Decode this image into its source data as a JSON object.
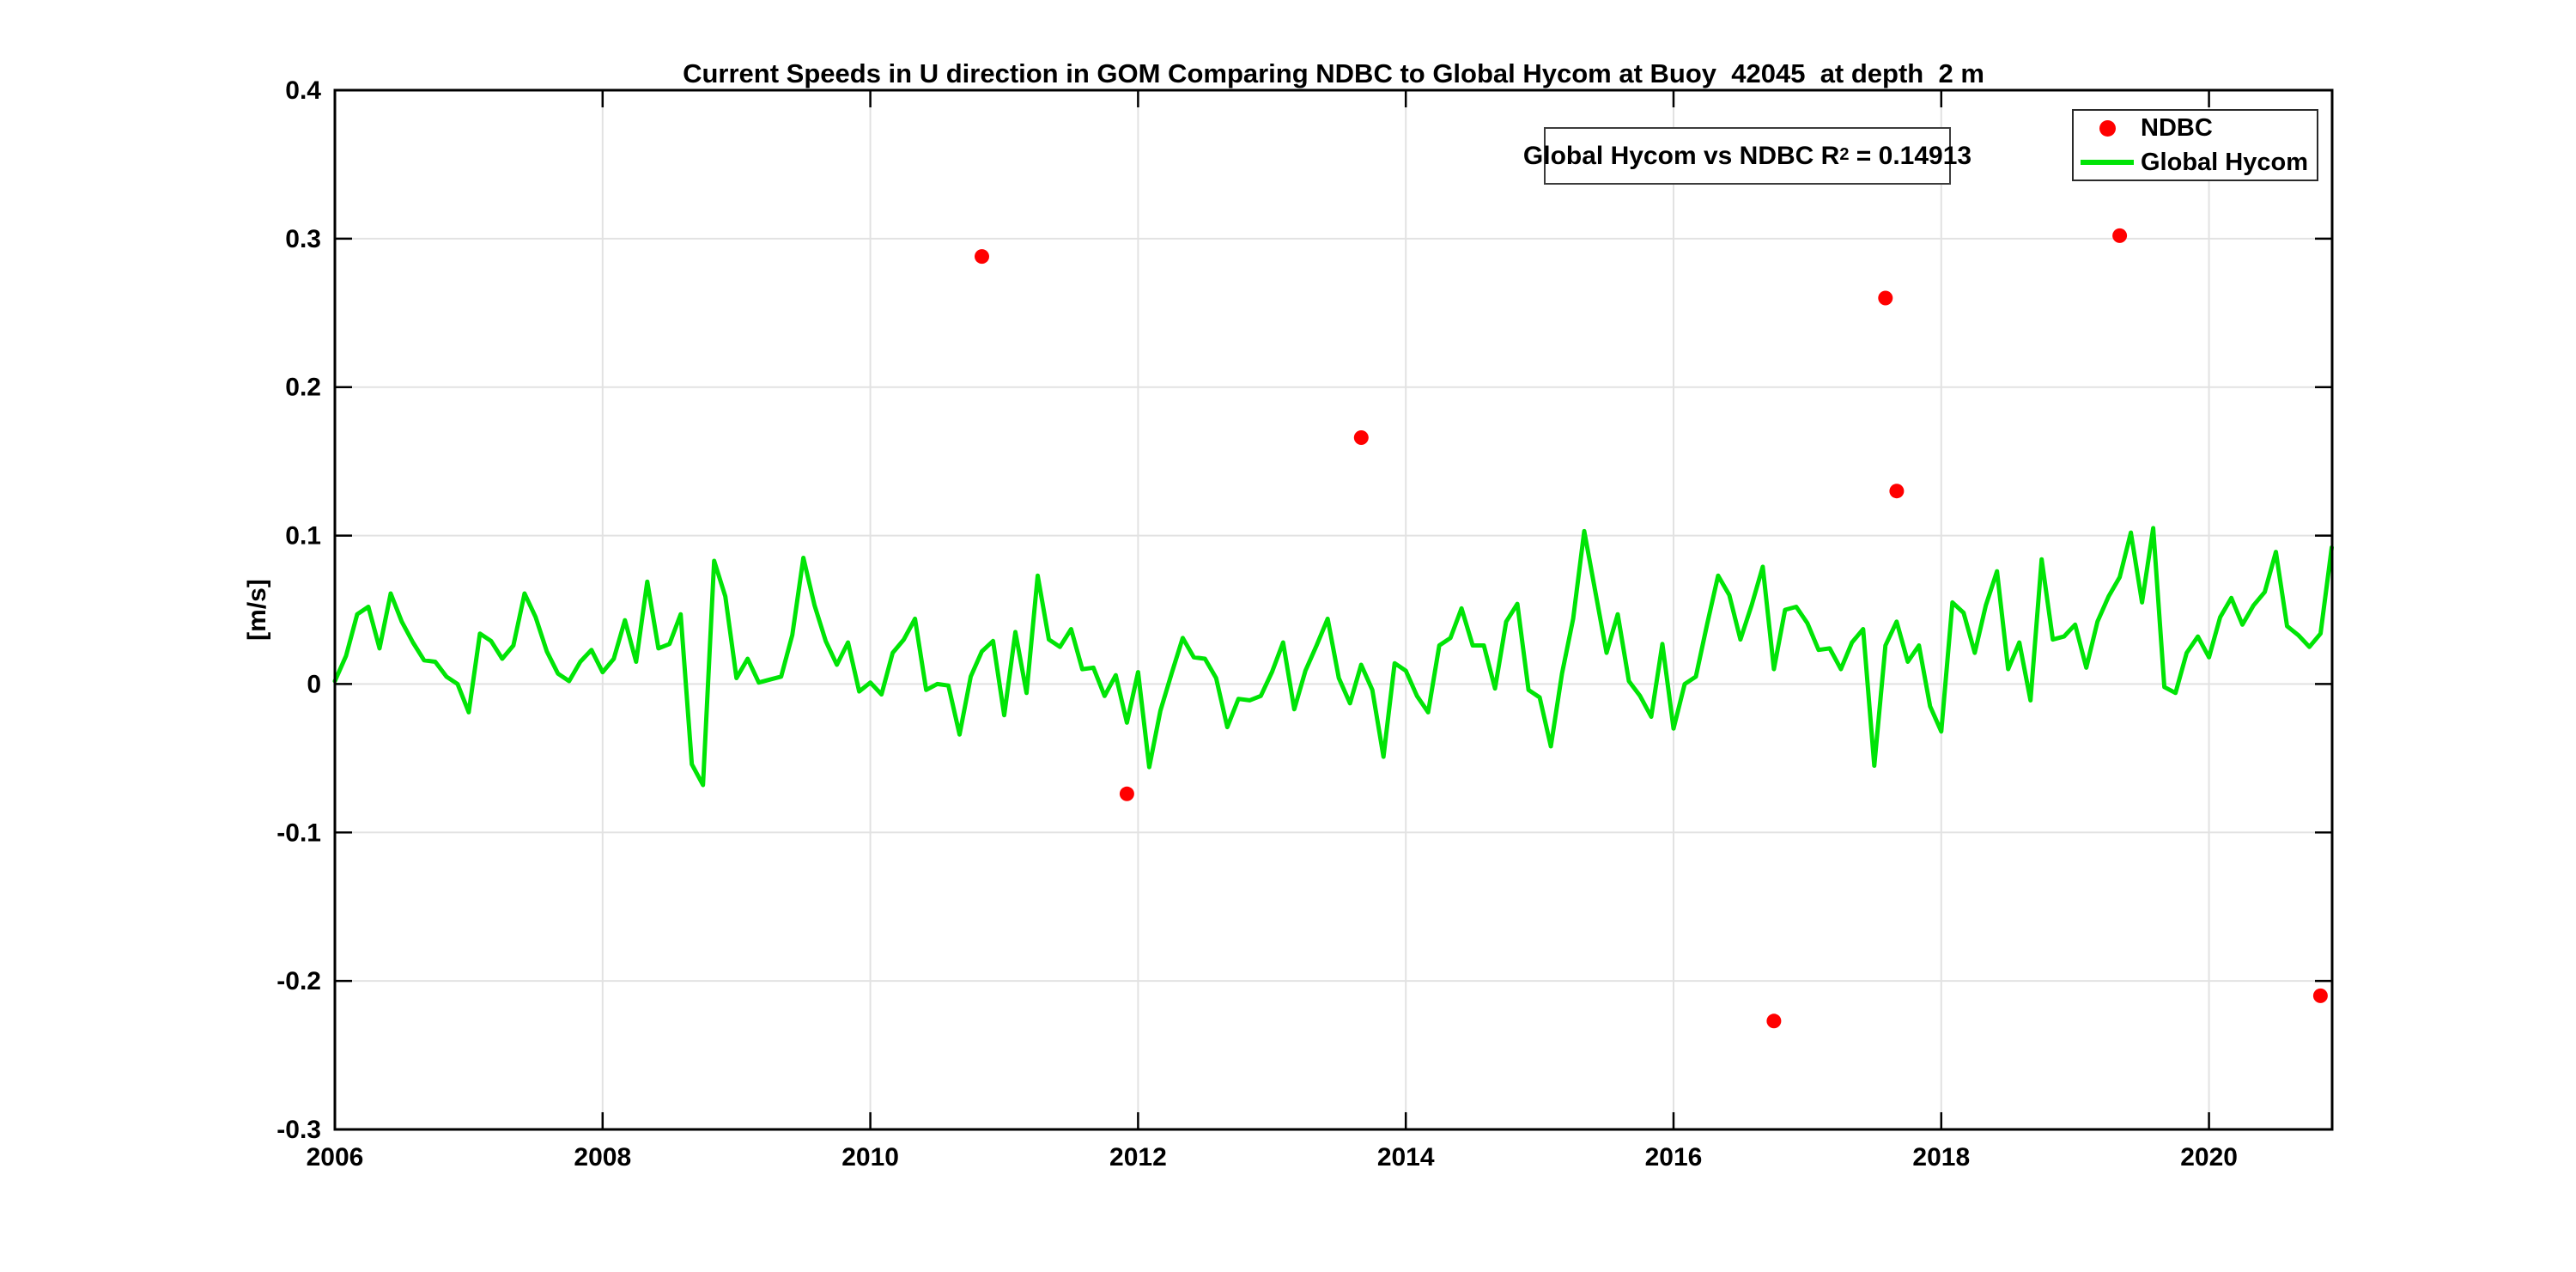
{
  "chart_data": {
    "type": "line",
    "title": "Current Speeds in U direction in GOM Comparing NDBC to Global Hycom at Buoy  42045  at depth  2 m",
    "xlabel": "",
    "ylabel": "[m/s]",
    "xlim": [
      2006,
      2020.92
    ],
    "ylim": [
      -0.3,
      0.4
    ],
    "grid": true,
    "grid_color": "#e2e2e2",
    "axis_color": "#000000",
    "background": "#ffffff",
    "xticks": [
      2006,
      2008,
      2010,
      2012,
      2014,
      2016,
      2018,
      2020
    ],
    "xtick_labels": [
      "2006",
      "2008",
      "2010",
      "2012",
      "2014",
      "2016",
      "2018",
      "2020"
    ],
    "yticks": [
      -0.3,
      -0.2,
      -0.1,
      0,
      0.1,
      0.2,
      0.3,
      0.4
    ],
    "ytick_labels": [
      "-0.3",
      "-0.2",
      "-0.1",
      "0",
      "0.1",
      "0.2",
      "0.3",
      "0.4"
    ],
    "legend_position": "top-right",
    "legend": [
      {
        "label": "NDBC",
        "marker": "dot",
        "color": "#ff0000"
      },
      {
        "label": "Global Hycom",
        "marker": "line",
        "color": "#00e406"
      }
    ],
    "annotation": {
      "prefix": "Global Hycom vs NDBC R",
      "sup": "2",
      "suffix": " = 0.14913"
    },
    "series": [
      {
        "name": "NDBC",
        "type": "scatter",
        "color": "#ff0000",
        "points": [
          [
            2010.833,
            0.288
          ],
          [
            2011.917,
            -0.074
          ],
          [
            2013.667,
            0.166
          ],
          [
            2016.75,
            -0.227
          ],
          [
            2017.583,
            0.26
          ],
          [
            2017.667,
            0.13
          ],
          [
            2019.333,
            0.302
          ],
          [
            2020.833,
            -0.21
          ]
        ]
      },
      {
        "name": "Global Hycom",
        "type": "line",
        "color": "#00e406",
        "monthly_values_by_year": [
          {
            "year": 2006,
            "values": [
              0.002,
              0.019,
              0.047,
              0.052,
              0.024,
              0.061,
              0.042,
              0.028,
              0.016,
              0.015,
              0.005,
              0.0
            ]
          },
          {
            "year": 2007,
            "values": [
              -0.019,
              0.034,
              0.029,
              0.017,
              0.026,
              0.061,
              0.045,
              0.022,
              0.007,
              0.002,
              0.015,
              0.023
            ]
          },
          {
            "year": 2008,
            "values": [
              0.008,
              0.017,
              0.043,
              0.015,
              0.069,
              0.024,
              0.027,
              0.047,
              -0.054,
              -0.068,
              0.083,
              0.059
            ]
          },
          {
            "year": 2009,
            "values": [
              0.004,
              0.017,
              0.001,
              0.003,
              0.005,
              0.033,
              0.085,
              0.053,
              0.029,
              0.013,
              0.028,
              -0.005
            ]
          },
          {
            "year": 2010,
            "values": [
              0.001,
              -0.007,
              0.021,
              0.03,
              0.044,
              -0.004,
              0.0,
              -0.001,
              -0.034,
              0.005,
              0.022,
              0.029
            ]
          },
          {
            "year": 2011,
            "values": [
              -0.021,
              0.035,
              -0.006,
              0.073,
              0.03,
              0.025,
              0.037,
              0.01,
              0.011,
              -0.008,
              0.006,
              -0.026
            ]
          },
          {
            "year": 2012,
            "values": [
              0.008,
              -0.056,
              -0.018,
              0.007,
              0.031,
              0.018,
              0.017,
              0.004,
              -0.029,
              -0.01,
              -0.011,
              -0.008
            ]
          },
          {
            "year": 2013,
            "values": [
              0.008,
              0.028,
              -0.017,
              0.009,
              0.026,
              0.044,
              0.004,
              -0.013,
              0.013,
              -0.004,
              -0.049,
              0.014
            ]
          },
          {
            "year": 2014,
            "values": [
              0.009,
              -0.008,
              -0.019,
              0.026,
              0.031,
              0.051,
              0.026,
              0.026,
              -0.003,
              0.042,
              0.054,
              -0.004
            ]
          },
          {
            "year": 2015,
            "values": [
              -0.009,
              -0.042,
              0.007,
              0.044,
              0.103,
              0.062,
              0.021,
              0.047,
              0.002,
              -0.008,
              -0.022,
              0.027
            ]
          },
          {
            "year": 2016,
            "values": [
              -0.03,
              0.0,
              0.005,
              0.04,
              0.073,
              0.06,
              0.03,
              0.053,
              0.079,
              0.01,
              0.05,
              0.052
            ]
          },
          {
            "year": 2017,
            "values": [
              0.041,
              0.023,
              0.024,
              0.01,
              0.028,
              0.037,
              -0.055,
              0.026,
              0.042,
              0.015,
              0.026,
              -0.015
            ]
          },
          {
            "year": 2018,
            "values": [
              -0.032,
              0.055,
              0.048,
              0.021,
              0.053,
              0.076,
              0.01,
              0.028,
              -0.011,
              0.084,
              0.03,
              0.032
            ]
          },
          {
            "year": 2019,
            "values": [
              0.04,
              0.011,
              0.042,
              0.059,
              0.072,
              0.102,
              0.055,
              0.105,
              -0.002,
              -0.006,
              0.021,
              0.032
            ]
          },
          {
            "year": 2020,
            "values": [
              0.018,
              0.045,
              0.058,
              0.04,
              0.053,
              0.062,
              0.089,
              0.039,
              0.033,
              0.025,
              0.034,
              0.092
            ]
          }
        ]
      }
    ]
  }
}
